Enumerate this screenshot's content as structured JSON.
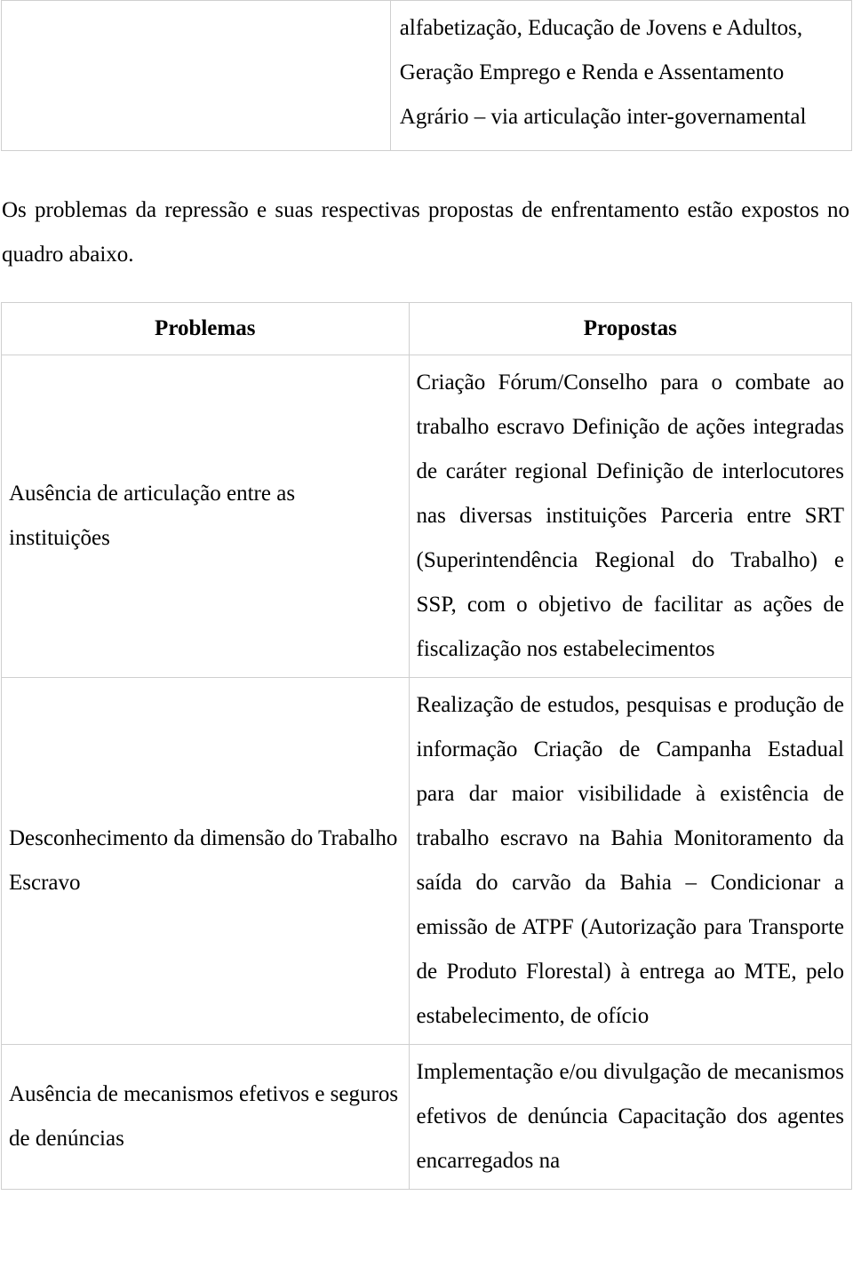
{
  "topTable": {
    "rightCell": "alfabetização, Educação de Jovens e Adultos, Geração Emprego e Renda e Assentamento Agrário – via articulação inter-governamental"
  },
  "intro": {
    "paragraph": "Os problemas da repressão e suas respectivas propostas de enfrentamento estão expostos no quadro abaixo."
  },
  "table": {
    "headers": {
      "left": "Problemas",
      "right": "Propostas"
    },
    "rows": [
      {
        "problema": "Ausência de articulação entre as instituições",
        "proposta": "Criação Fórum/Conselho para o combate ao trabalho escravo\nDefinição de ações integradas de caráter regional\nDefinição de interlocutores nas diversas instituições\nParceria entre SRT (Superintendência Regional do Trabalho) e SSP, com o objetivo de facilitar as ações de fiscalização nos estabelecimentos"
      },
      {
        "problema": "Desconhecimento da dimensão do Trabalho Escravo",
        "proposta": "Realização de estudos, pesquisas e produção de informação\nCriação de Campanha Estadual para dar maior visibilidade à existência de trabalho escravo na Bahia\nMonitoramento da saída do carvão da Bahia – Condicionar a emissão de ATPF (Autorização para Transporte de Produto Florestal) à entrega ao MTE, pelo estabelecimento, de ofício"
      },
      {
        "problema": "Ausência de mecanismos efetivos e seguros de denúncias",
        "proposta": "Implementação e/ou divulgação de mecanismos efetivos de denúncia\nCapacitação dos agentes encarregados na"
      }
    ]
  }
}
